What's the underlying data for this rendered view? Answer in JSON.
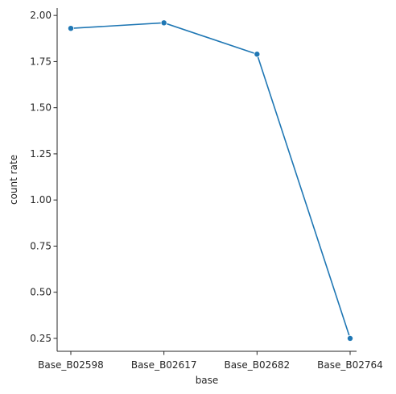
{
  "chart_data": {
    "type": "line",
    "categories": [
      "Base_B02598",
      "Base_B02617",
      "Base_B02682",
      "Base_B02764"
    ],
    "series": [
      {
        "values": [
          1.93,
          1.96,
          1.79,
          0.25
        ]
      }
    ],
    "title": "",
    "xlabel": "base",
    "ylabel": "count rate",
    "ylim": [
      0.18,
      2.04
    ],
    "yticks": [
      "0.25",
      "0.50",
      "0.75",
      "1.00",
      "1.25",
      "1.50",
      "1.75",
      "2.00"
    ],
    "grid": false,
    "line_color": "#1f77b4",
    "marker": "circle"
  }
}
